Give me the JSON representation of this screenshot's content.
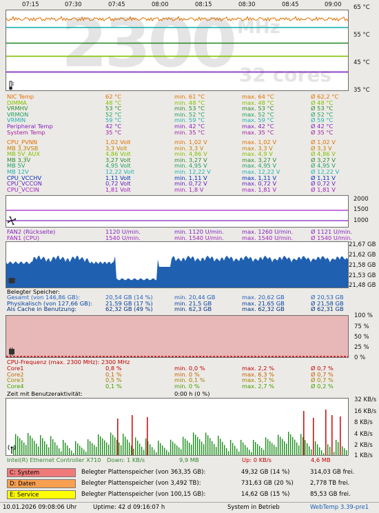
{
  "temp_chart": {
    "times": [
      "07:15",
      "07:30",
      "07:45",
      "08:00",
      "08:15",
      "08:30",
      "08:45",
      "09:00"
    ],
    "y_labels": [
      "65 °C",
      "55 °C",
      "45 °C",
      "35 °C"
    ],
    "watermark_big": "2300",
    "watermark_unit": "MHz",
    "watermark_cores": "32 cores",
    "ylim": [
      35,
      65
    ],
    "lines": [
      {
        "color": "#e07000",
        "value": 62.2,
        "noisy": true
      },
      {
        "color": "#20b0b0",
        "value": 59
      },
      {
        "color": "#2e8b2e",
        "value": 53
      },
      {
        "color": "#80c000",
        "value": 48
      },
      {
        "color": "#8020c0",
        "value": 42
      }
    ]
  },
  "sensors": [
    {
      "name": "NIC Temp",
      "cur": "62 °C",
      "min": "min. 61 °C",
      "max": "max. 64 °C",
      "avg": "Ø 62,2 °C",
      "color": "#e07000"
    },
    {
      "name": "DIMMA",
      "cur": "48 °C",
      "min": "min. 48 °C",
      "max": "max. 48 °C",
      "avg": "Ø 48 °C",
      "color": "#80c000"
    },
    {
      "name": "VRMHV",
      "cur": "53 °C",
      "min": "min. 53 °C",
      "max": "max. 53 °C",
      "avg": "Ø 53 °C",
      "color": "#2e8b2e"
    },
    {
      "name": "VRMON",
      "cur": "52 °C",
      "min": "min. 52 °C",
      "max": "max. 52 °C",
      "avg": "Ø 52 °C",
      "color": "#20a060"
    },
    {
      "name": "VRMIN",
      "cur": "59 °C",
      "min": "min. 59 °C",
      "max": "max. 59 °C",
      "avg": "Ø 59 °C",
      "color": "#20b0b0"
    },
    {
      "name": "Peripheral Temp",
      "cur": "42 °C",
      "min": "min. 42 °C",
      "max": "max. 42 °C",
      "avg": "Ø 42 °C",
      "color": "#8020c0"
    },
    {
      "name": "System Temp",
      "cur": "35 °C",
      "min": "min. 35 °C",
      "max": "max. 35 °C",
      "avg": "Ø 35 °C",
      "color": "#a020a0"
    }
  ],
  "volts": [
    {
      "name": "CPU_PVNN",
      "cur": "1,02 Volt",
      "min": "min. 1,02 V",
      "max": "max. 1,02 V",
      "avg": "Ø 1,02 V",
      "color": "#e07000"
    },
    {
      "name": "MB 3,3VSB",
      "cur": "3,3 Volt",
      "min": "min. 3,3 V",
      "max": "max. 3,3 V",
      "avg": "Ø 3,3 V",
      "color": "#c08000"
    },
    {
      "name": "MB 5V_AUX",
      "cur": "4,86 Volt",
      "min": "min. 4,86 V",
      "max": "max. 4,9 V",
      "avg": "Ø 4,86 V",
      "color": "#80c000"
    },
    {
      "name": "MB 3,3V",
      "cur": "3,27 Volt",
      "min": "min. 3,27 V",
      "max": "max. 3,27 V",
      "avg": "Ø 3,27 V",
      "color": "#2e8b2e"
    },
    {
      "name": "MB 5V",
      "cur": "4,95 Volt",
      "min": "min. 4,95 V",
      "max": "max. 4,95 V",
      "avg": "Ø 4,95 V",
      "color": "#20a060"
    },
    {
      "name": "MB 12V",
      "cur": "12,22 Volt",
      "min": "min. 12,22 V",
      "max": "max. 12,22 V",
      "avg": "Ø 12,22 V",
      "color": "#20b0b0"
    },
    {
      "name": "CPU_VCCHV",
      "cur": "1,11 Volt",
      "min": "min. 1,11 V",
      "max": "max. 1,11 V",
      "avg": "Ø 1,11 V",
      "color": "#0030c0"
    },
    {
      "name": "CPU_VCCON",
      "cur": "0,72 Volt",
      "min": "min. 0,72 V",
      "max": "max. 0,72 V",
      "avg": "Ø 0,72 V",
      "color": "#6020c0"
    },
    {
      "name": "CPU_VCCIN",
      "cur": "1,81 Volt",
      "min": "min. 1,8 V",
      "max": "max. 1,81 V",
      "avg": "Ø 1,81 V",
      "color": "#a020c0"
    }
  ],
  "fan_chart": {
    "y_labels": [
      "2000",
      "1500",
      "1000"
    ]
  },
  "fans": [
    {
      "name": "FAN2 (Rückseite)",
      "cur": "1120 U/min.",
      "min": "min. 1120 U/min.",
      "max": "max. 1260 U/min.",
      "avg": "Ø 1121 U/min.",
      "color": "#8020c0"
    },
    {
      "name": "FAN1 (CPU)",
      "cur": "1540 U/min.",
      "min": "min. 1540 U/min.",
      "max": "max. 1540 U/min.",
      "avg": "Ø 1540 U/min.",
      "color": "#a020c0"
    }
  ],
  "mem_chart": {
    "y_labels": [
      "21,67 GB",
      "21,62 GB",
      "21,58 GB",
      "21,53 GB",
      "21,48 GB"
    ]
  },
  "mem_title": "Belegter Speicher:",
  "mem": [
    {
      "name": "Gesamt (von 146,86 GB):",
      "cur": "20,54 GB (14 %)",
      "min": "min. 20,44 GB",
      "max": "max. 20,62 GB",
      "avg": "Ø 20,53 GB",
      "color": "#2060c0"
    },
    {
      "name": "Physikalisch (von 127,66 GB):",
      "cur": "21,59 GB (17 %)",
      "min": "min. 21,5 GB",
      "max": "max. 21,65 GB",
      "avg": "Ø 21,58 GB",
      "color": "#0040a0"
    },
    {
      "name": "Als Cache in Benutzung:",
      "cur": "62,32 GB (49 %)",
      "min": "min. 62,3 GB",
      "max": "max. 62,32 GB",
      "avg": "Ø 62,31 GB",
      "color": "#003080"
    }
  ],
  "cpu_chart": {
    "y_labels": [
      "100 %",
      "75 %",
      "50 %",
      "25 %",
      "0 %"
    ]
  },
  "cpu_freq": "CPU-Frequenz (max. 2300 MHz): 2300 MHz",
  "cores": [
    {
      "name": "Core1",
      "cur": "0,8 %",
      "min": "min. 0,0 %",
      "max": "max. 2,2 %",
      "avg": "Ø 0,7 %",
      "color": "#c00000"
    },
    {
      "name": "Core2",
      "cur": "0,1 %",
      "min": "min. 0 %",
      "max": "max. 6,3 %",
      "avg": "Ø 0,7 %",
      "color": "#c06000"
    },
    {
      "name": "Core3",
      "cur": "0,5 %",
      "min": "min. 0,1 %",
      "max": "max. 5,7 %",
      "avg": "Ø 0,7 %",
      "color": "#a08000"
    },
    {
      "name": "Core4",
      "cur": "0,1 %",
      "min": "min. 0 %",
      "max": "max. 2,7 %",
      "avg": "Ø 0,2 %",
      "color": "#40a000"
    }
  ],
  "user_activity": {
    "label": "Zeit mit Benutzeraktivität:",
    "value": "0:00 h (0 %)"
  },
  "net_chart": {
    "y_labels": [
      "32 KB/s",
      "16 KB/s",
      "8 KB/s",
      "4 KB/s",
      "2 KB/s",
      "1 KB/s"
    ]
  },
  "net": {
    "name": "Intel(R) Ethernet Controller X710",
    "down": "Down: 1 KB/s",
    "down_total": "9,9 MB",
    "up": "Up: 0 KB/s",
    "up_total": "4,6 MB"
  },
  "drives": [
    {
      "label": "C: System",
      "color": "#f07a7a",
      "desc": "Belegter Plattenspeicher (von 363,35 GB):",
      "used": "49,32 GB (14 %)",
      "free": "314,03 GB frei."
    },
    {
      "label": "D: Daten",
      "color": "#f8a050",
      "desc": "Belegter Plattenspeicher (von 3,492 TB):",
      "used": "731,63 GB (20 %)",
      "free": "2,778 TB frei."
    },
    {
      "label": "E: Service",
      "color": "#ffff00",
      "desc": "Belegter Plattenspeicher (von 100,15 GB):",
      "used": "14,62 GB (15 %)",
      "free": "85,53 GB frei."
    }
  ],
  "status": {
    "datetime": "10.01.2026 09:08:06 Uhr",
    "uptime": "Uptime: 42 d 09:16:07 h",
    "state": "System in Betrieb",
    "version": "WebTemp 3.39-pre1"
  }
}
